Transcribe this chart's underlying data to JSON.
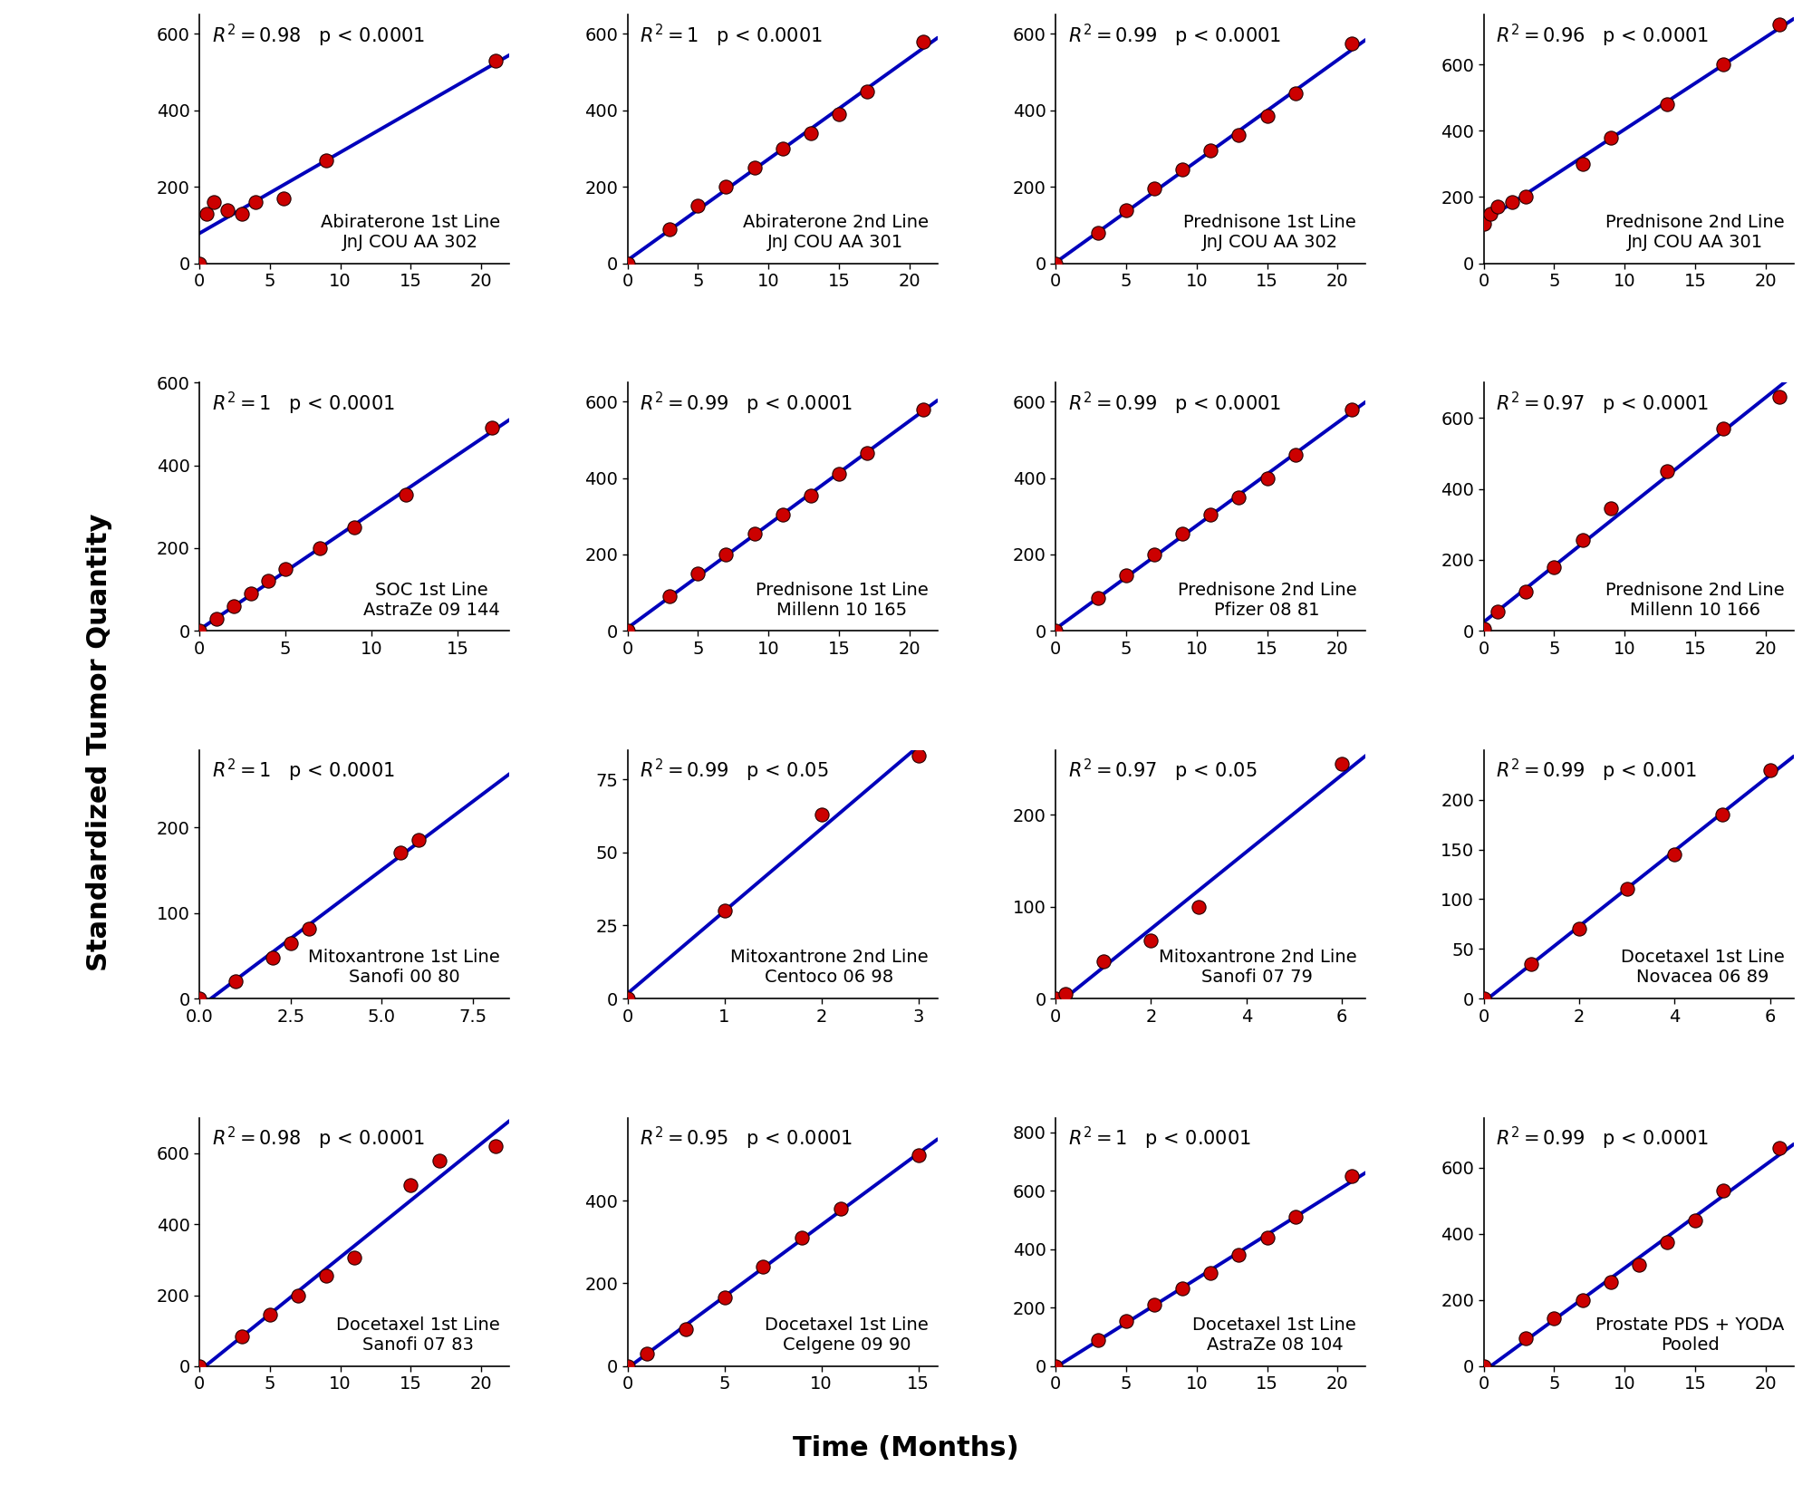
{
  "subplots": [
    {
      "title_line1": "Abiraterone 1st Line",
      "title_line2": "JnJ COU AA 302",
      "r2": "0.98",
      "p": "p < 0.0001",
      "x": [
        0,
        0.5,
        1,
        2,
        3,
        4,
        6,
        9,
        21
      ],
      "y": [
        0,
        130,
        160,
        140,
        130,
        160,
        170,
        270,
        530
      ],
      "xlim": [
        0,
        22
      ],
      "ylim": [
        0,
        650
      ],
      "xticks": [
        0,
        5,
        10,
        15,
        20
      ],
      "yticks": [
        0,
        200,
        400,
        600
      ]
    },
    {
      "title_line1": "Abiraterone 2nd Line",
      "title_line2": "JnJ COU AA 301",
      "r2": "1",
      "p": "p < 0.0001",
      "x": [
        0,
        3,
        5,
        7,
        9,
        11,
        13,
        15,
        17,
        21
      ],
      "y": [
        0,
        90,
        150,
        200,
        250,
        300,
        340,
        390,
        450,
        580
      ],
      "xlim": [
        0,
        22
      ],
      "ylim": [
        0,
        650
      ],
      "xticks": [
        0,
        5,
        10,
        15,
        20
      ],
      "yticks": [
        0,
        200,
        400,
        600
      ]
    },
    {
      "title_line1": "Prednisone 1st Line",
      "title_line2": "JnJ COU AA 302",
      "r2": "0.99",
      "p": "p < 0.0001",
      "x": [
        0,
        3,
        5,
        7,
        9,
        11,
        13,
        15,
        17,
        21
      ],
      "y": [
        0,
        80,
        140,
        195,
        245,
        295,
        335,
        385,
        445,
        575
      ],
      "xlim": [
        0,
        22
      ],
      "ylim": [
        0,
        650
      ],
      "xticks": [
        0,
        5,
        10,
        15,
        20
      ],
      "yticks": [
        0,
        200,
        400,
        600
      ]
    },
    {
      "title_line1": "Prednisone 2nd Line",
      "title_line2": "JnJ COU AA 301",
      "r2": "0.96",
      "p": "p < 0.0001",
      "x": [
        0,
        0.5,
        1,
        2,
        3,
        7,
        9,
        13,
        17,
        21
      ],
      "y": [
        120,
        150,
        170,
        185,
        200,
        300,
        380,
        480,
        600,
        720
      ],
      "xlim": [
        0,
        22
      ],
      "ylim": [
        0,
        750
      ],
      "xticks": [
        0,
        5,
        10,
        15,
        20
      ],
      "yticks": [
        0,
        200,
        400,
        600
      ]
    },
    {
      "title_line1": "SOC 1st Line",
      "title_line2": "AstraZe 09 144",
      "r2": "1",
      "p": "p < 0.0001",
      "x": [
        0,
        1,
        2,
        3,
        4,
        5,
        7,
        9,
        12,
        17
      ],
      "y": [
        0,
        30,
        60,
        90,
        120,
        150,
        200,
        250,
        330,
        490
      ],
      "xlim": [
        0,
        18
      ],
      "ylim": [
        0,
        600
      ],
      "xticks": [
        0,
        5,
        10,
        15
      ],
      "yticks": [
        0,
        200,
        400,
        600
      ]
    },
    {
      "title_line1": "Prednisone 1st Line",
      "title_line2": "Millenn 10 165",
      "r2": "0.99",
      "p": "p < 0.0001",
      "x": [
        0,
        3,
        5,
        7,
        9,
        11,
        13,
        15,
        17,
        21
      ],
      "y": [
        0,
        90,
        150,
        200,
        255,
        305,
        355,
        410,
        465,
        580
      ],
      "xlim": [
        0,
        22
      ],
      "ylim": [
        0,
        650
      ],
      "xticks": [
        0,
        5,
        10,
        15,
        20
      ],
      "yticks": [
        0,
        200,
        400,
        600
      ]
    },
    {
      "title_line1": "Prednisone 2nd Line",
      "title_line2": "Pfizer 08 81",
      "r2": "0.99",
      "p": "p < 0.0001",
      "x": [
        0,
        3,
        5,
        7,
        9,
        11,
        13,
        15,
        17,
        21
      ],
      "y": [
        0,
        85,
        145,
        200,
        255,
        305,
        350,
        400,
        460,
        580
      ],
      "xlim": [
        0,
        22
      ],
      "ylim": [
        0,
        650
      ],
      "xticks": [
        0,
        5,
        10,
        15,
        20
      ],
      "yticks": [
        0,
        200,
        400,
        600
      ]
    },
    {
      "title_line1": "Prednisone 2nd Line",
      "title_line2": "Millenn 10 166",
      "r2": "0.97",
      "p": "p < 0.0001",
      "x": [
        0,
        1,
        3,
        5,
        7,
        9,
        13,
        17,
        21
      ],
      "y": [
        5,
        55,
        110,
        180,
        255,
        345,
        450,
        570,
        660
      ],
      "xlim": [
        0,
        22
      ],
      "ylim": [
        0,
        700
      ],
      "xticks": [
        0,
        5,
        10,
        15,
        20
      ],
      "yticks": [
        0,
        200,
        400,
        600
      ]
    },
    {
      "title_line1": "Mitoxantrone 1st Line",
      "title_line2": "Sanofi 00 80",
      "r2": "1",
      "p": "p < 0.0001",
      "x": [
        0,
        1,
        2,
        2.5,
        3,
        5.5,
        6
      ],
      "y": [
        0,
        20,
        48,
        65,
        82,
        170,
        185
      ],
      "xlim": [
        0,
        8.5
      ],
      "ylim": [
        0,
        290
      ],
      "xticks": [
        0.0,
        2.5,
        5.0,
        7.5
      ],
      "yticks": [
        0,
        100,
        200
      ]
    },
    {
      "title_line1": "Mitoxantrone 2nd Line",
      "title_line2": "Centoco 06 98",
      "r2": "0.99",
      "p": "p < 0.05",
      "x": [
        0,
        1,
        2,
        3
      ],
      "y": [
        0,
        30,
        63,
        83
      ],
      "xlim": [
        0,
        3.2
      ],
      "ylim": [
        0,
        85
      ],
      "xticks": [
        0,
        1,
        2,
        3
      ],
      "yticks": [
        0,
        25,
        50,
        75
      ]
    },
    {
      "title_line1": "Mitoxantrone 2nd Line",
      "title_line2": "Sanofi 07 79",
      "r2": "0.97",
      "p": "p < 0.05",
      "x": [
        0,
        0.2,
        1,
        2,
        3,
        6
      ],
      "y": [
        0,
        5,
        40,
        63,
        100,
        255
      ],
      "xlim": [
        0,
        6.5
      ],
      "ylim": [
        0,
        270
      ],
      "xticks": [
        0,
        2,
        4,
        6
      ],
      "yticks": [
        0,
        100,
        200
      ]
    },
    {
      "title_line1": "Docetaxel 1st Line",
      "title_line2": "Novacea 06 89",
      "r2": "0.99",
      "p": "p < 0.001",
      "x": [
        0,
        1,
        2,
        3,
        4,
        5,
        6
      ],
      "y": [
        0,
        35,
        70,
        110,
        145,
        185,
        230
      ],
      "xlim": [
        0,
        6.5
      ],
      "ylim": [
        0,
        250
      ],
      "xticks": [
        0,
        2,
        4,
        6
      ],
      "yticks": [
        0,
        50,
        100,
        150,
        200
      ]
    },
    {
      "title_line1": "Docetaxel 1st Line",
      "title_line2": "Sanofi 07 83",
      "r2": "0.98",
      "p": "p < 0.0001",
      "x": [
        0,
        3,
        5,
        7,
        9,
        11,
        15,
        17,
        21
      ],
      "y": [
        0,
        85,
        145,
        200,
        255,
        305,
        510,
        580,
        620
      ],
      "xlim": [
        0,
        22
      ],
      "ylim": [
        0,
        700
      ],
      "xticks": [
        0,
        5,
        10,
        15,
        20
      ],
      "yticks": [
        0,
        200,
        400,
        600
      ]
    },
    {
      "title_line1": "Docetaxel 1st Line",
      "title_line2": "Celgene 09 90",
      "r2": "0.95",
      "p": "p < 0.0001",
      "x": [
        0,
        1,
        3,
        5,
        7,
        9,
        11,
        15
      ],
      "y": [
        0,
        30,
        90,
        165,
        240,
        310,
        380,
        510
      ],
      "xlim": [
        0,
        16
      ],
      "ylim": [
        0,
        600
      ],
      "xticks": [
        0,
        5,
        10,
        15
      ],
      "yticks": [
        0,
        200,
        400
      ]
    },
    {
      "title_line1": "Docetaxel 1st Line",
      "title_line2": "AstraZe 08 104",
      "r2": "1",
      "p": "p < 0.0001",
      "x": [
        0,
        3,
        5,
        7,
        9,
        11,
        13,
        15,
        17,
        21
      ],
      "y": [
        0,
        90,
        155,
        210,
        265,
        320,
        380,
        440,
        510,
        650
      ],
      "xlim": [
        0,
        22
      ],
      "ylim": [
        0,
        850
      ],
      "xticks": [
        0,
        5,
        10,
        15,
        20
      ],
      "yticks": [
        0,
        200,
        400,
        600,
        800
      ]
    },
    {
      "title_line1": "Prostate PDS + YODA",
      "title_line2": "Pooled",
      "r2": "0.99",
      "p": "p < 0.0001",
      "x": [
        0,
        3,
        5,
        7,
        9,
        11,
        13,
        15,
        17,
        21
      ],
      "y": [
        0,
        85,
        145,
        200,
        255,
        305,
        375,
        440,
        530,
        660
      ],
      "xlim": [
        0,
        22
      ],
      "ylim": [
        0,
        750
      ],
      "xticks": [
        0,
        5,
        10,
        15,
        20
      ],
      "yticks": [
        0,
        200,
        400,
        600
      ]
    }
  ],
  "dot_color": "#CC0000",
  "dot_edgecolor": "#220000",
  "line_color": "#0000BB",
  "dot_size": 120,
  "line_width": 2.8,
  "xlabel": "Time (Months)",
  "ylabel": "Standardized Tumor Quantity",
  "tick_fontsize": 14,
  "annot_fontsize": 15,
  "label_fontsize": 22,
  "inner_label_fontsize": 14
}
